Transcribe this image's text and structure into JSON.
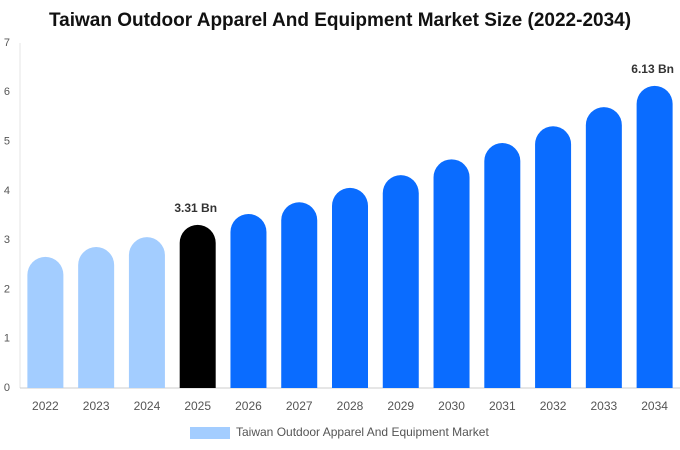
{
  "chart_data": {
    "type": "bar",
    "title": "Taiwan Outdoor Apparel And Equipment Market Size (2022-2034)",
    "categories": [
      "2022",
      "2023",
      "2024",
      "2025",
      "2026",
      "2027",
      "2028",
      "2029",
      "2030",
      "2031",
      "2032",
      "2033",
      "2034"
    ],
    "series": [
      {
        "name": "Taiwan Outdoor Apparel And Equipment Market",
        "color": "#a3cdff",
        "values": [
          2.66,
          2.86,
          3.06,
          3.31,
          3.53,
          3.77,
          4.06,
          4.32,
          4.64,
          4.97,
          5.31,
          5.7,
          6.13
        ],
        "value_labels": [
          null,
          null,
          null,
          "3.31 Bn",
          null,
          null,
          null,
          null,
          null,
          null,
          null,
          null,
          "6.13 Bn"
        ],
        "colors": [
          "#a3cdff",
          "#a3cdff",
          "#a3cdff",
          "#000000",
          "#0a6cff",
          "#0a6cff",
          "#0a6cff",
          "#0a6cff",
          "#0a6cff",
          "#0a6cff",
          "#0a6cff",
          "#0a6cff",
          "#0a6cff"
        ]
      }
    ],
    "ylim": [
      0,
      7
    ],
    "yticks": [
      0,
      1,
      2,
      3,
      4,
      5,
      6,
      7
    ],
    "grid": false,
    "legend": "bottom"
  }
}
